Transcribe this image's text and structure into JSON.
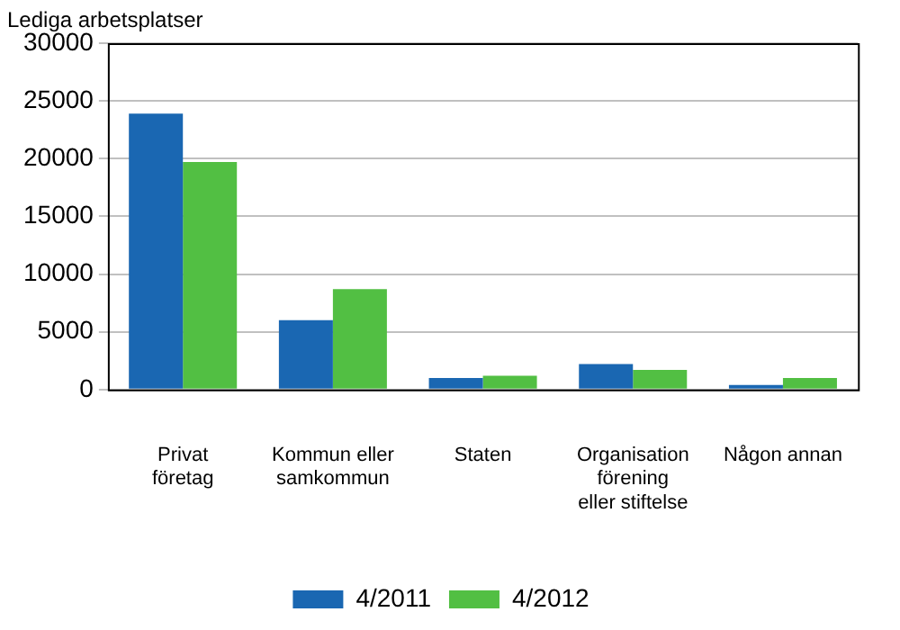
{
  "chart_data": {
    "type": "bar",
    "ylabel": "Lediga arbetsplatser",
    "categories": [
      "Privat\nföretag",
      "Kommun eller\nsamkommun",
      "Staten",
      "Organisation\nförening\neller stiftelse",
      "Någon annan"
    ],
    "series": [
      {
        "name": "4/2011",
        "color": "#1a67b2",
        "values": [
          23900,
          6000,
          1000,
          2200,
          400
        ]
      },
      {
        "name": "4/2012",
        "color": "#52bf43",
        "values": [
          19700,
          8700,
          1200,
          1700,
          1000
        ]
      }
    ],
    "ylim": [
      0,
      30000
    ],
    "yticks": [
      0,
      5000,
      10000,
      15000,
      20000,
      25000,
      30000
    ],
    "grid": "y",
    "legend": "bottom"
  }
}
